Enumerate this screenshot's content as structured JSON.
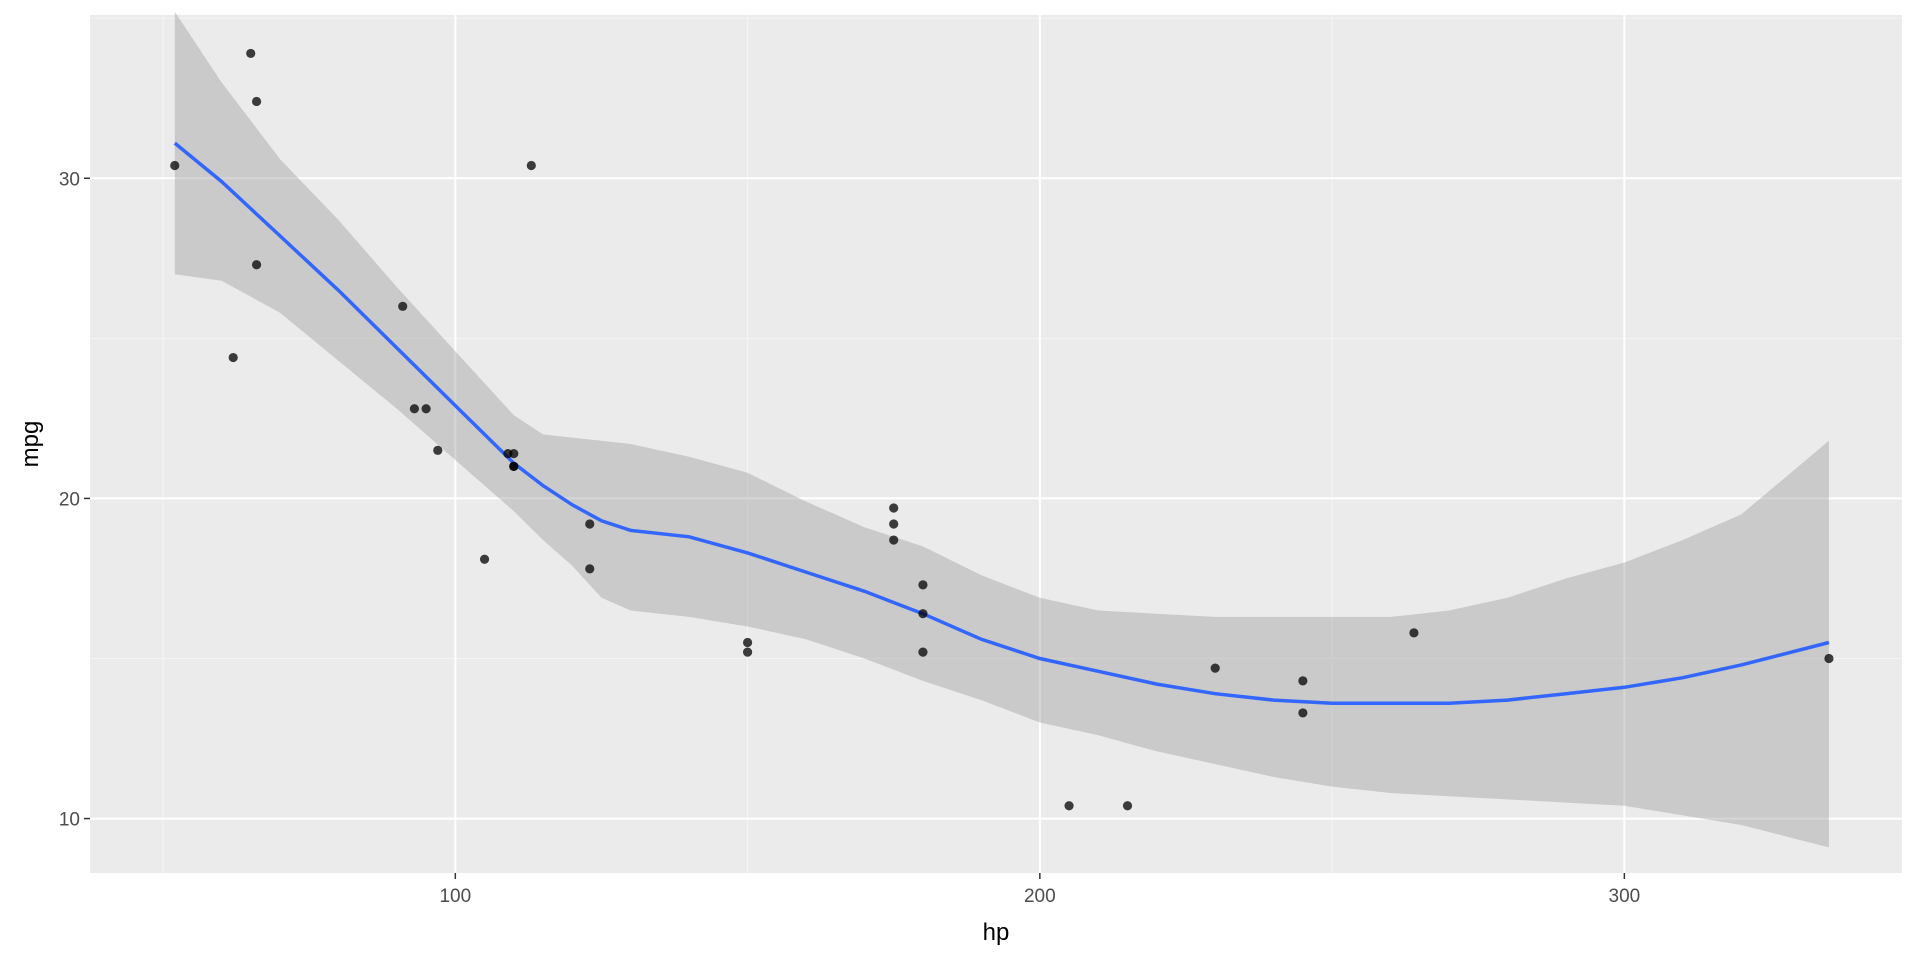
{
  "colors": {
    "panel_background": "#ebebeb",
    "grid_major": "#ffffff",
    "grid_minor": "#f5f5f5",
    "points": "#000000",
    "smooth_line": "#3366ff",
    "confidence_band": "#999999",
    "tick_text": "#4d4d4d",
    "tick_mark": "#333333"
  },
  "chart_data": {
    "type": "scatter",
    "xlabel": "hp",
    "ylabel": "mpg",
    "xlim": [
      37.5,
      347.5
    ],
    "ylim": [
      8.3,
      35.1
    ],
    "x_ticks": [
      100,
      200,
      300
    ],
    "y_ticks": [
      10,
      20,
      30
    ],
    "x_tick_labels": [
      "100",
      "200",
      "300"
    ],
    "y_tick_labels": [
      "10",
      "20",
      "30"
    ],
    "grid": true,
    "legend": "none",
    "points": [
      {
        "x": 52,
        "y": 30.4
      },
      {
        "x": 62,
        "y": 24.4
      },
      {
        "x": 65,
        "y": 33.9
      },
      {
        "x": 66,
        "y": 32.4
      },
      {
        "x": 66,
        "y": 27.3
      },
      {
        "x": 91,
        "y": 26.0
      },
      {
        "x": 93,
        "y": 22.8
      },
      {
        "x": 95,
        "y": 22.8
      },
      {
        "x": 97,
        "y": 21.5
      },
      {
        "x": 105,
        "y": 18.1
      },
      {
        "x": 109,
        "y": 21.4
      },
      {
        "x": 110,
        "y": 21.0
      },
      {
        "x": 110,
        "y": 21.0
      },
      {
        "x": 110,
        "y": 21.4
      },
      {
        "x": 113,
        "y": 30.4
      },
      {
        "x": 123,
        "y": 17.8
      },
      {
        "x": 123,
        "y": 19.2
      },
      {
        "x": 150,
        "y": 15.5
      },
      {
        "x": 150,
        "y": 15.2
      },
      {
        "x": 175,
        "y": 18.7
      },
      {
        "x": 175,
        "y": 19.2
      },
      {
        "x": 175,
        "y": 19.7
      },
      {
        "x": 180,
        "y": 16.4
      },
      {
        "x": 180,
        "y": 17.3
      },
      {
        "x": 180,
        "y": 15.2
      },
      {
        "x": 205,
        "y": 10.4
      },
      {
        "x": 215,
        "y": 10.4
      },
      {
        "x": 230,
        "y": 14.7
      },
      {
        "x": 245,
        "y": 14.3
      },
      {
        "x": 245,
        "y": 13.3
      },
      {
        "x": 264,
        "y": 15.8
      },
      {
        "x": 335,
        "y": 15.0
      }
    ],
    "smooth": {
      "method": "loess",
      "x": [
        52,
        60,
        70,
        80,
        90,
        100,
        110,
        115,
        120,
        125,
        130,
        140,
        150,
        160,
        170,
        180,
        190,
        200,
        210,
        220,
        230,
        240,
        250,
        260,
        270,
        280,
        290,
        300,
        310,
        320,
        335
      ],
      "y": [
        31.1,
        29.9,
        28.2,
        26.5,
        24.7,
        22.9,
        21.1,
        20.4,
        19.8,
        19.3,
        19.0,
        18.8,
        18.3,
        17.7,
        17.1,
        16.4,
        15.6,
        15.0,
        14.6,
        14.2,
        13.9,
        13.7,
        13.6,
        13.6,
        13.6,
        13.7,
        13.9,
        14.1,
        14.4,
        14.8,
        15.5
      ],
      "lower": [
        27.0,
        26.8,
        25.8,
        24.3,
        22.8,
        21.2,
        19.6,
        18.7,
        17.9,
        16.9,
        16.5,
        16.3,
        16.0,
        15.6,
        15.0,
        14.3,
        13.7,
        13.0,
        12.6,
        12.1,
        11.7,
        11.3,
        11.0,
        10.8,
        10.7,
        10.6,
        10.5,
        10.4,
        10.1,
        9.8,
        9.1
      ],
      "upper": [
        35.2,
        33.0,
        30.6,
        28.7,
        26.6,
        24.6,
        22.6,
        22.0,
        21.9,
        21.8,
        21.7,
        21.3,
        20.8,
        19.9,
        19.1,
        18.5,
        17.6,
        16.9,
        16.5,
        16.4,
        16.3,
        16.3,
        16.3,
        16.3,
        16.5,
        16.9,
        17.5,
        18.0,
        18.7,
        19.5,
        21.8
      ]
    }
  }
}
